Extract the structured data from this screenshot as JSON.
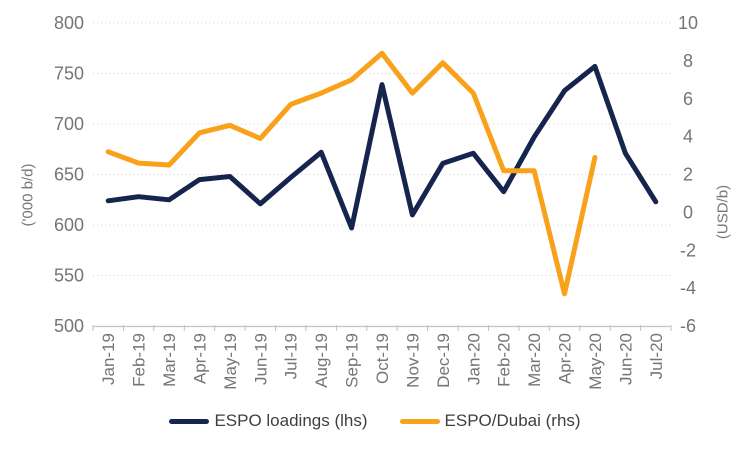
{
  "chart_data": {
    "type": "line",
    "title": "",
    "categories": [
      "Jan-19",
      "Feb-19",
      "Mar-19",
      "Apr-19",
      "May-19",
      "Jun-19",
      "Jul-19",
      "Aug-19",
      "Sep-19",
      "Oct-19",
      "Nov-19",
      "Dec-19",
      "Jan-20",
      "Feb-20",
      "Mar-20",
      "Apr-20",
      "May-20",
      "Jun-20",
      "Jul-20"
    ],
    "series": [
      {
        "name": "ESPO loadings (lhs)",
        "yaxis": "left",
        "color": "#16254e",
        "values": [
          624,
          628,
          625,
          645,
          648,
          621,
          647,
          672,
          597,
          739,
          610,
          661,
          671,
          633,
          687,
          733,
          757,
          671,
          623
        ]
      },
      {
        "name": "ESPO/Dubai (rhs)",
        "yaxis": "right",
        "color": "#f9a11b",
        "values": [
          3.2,
          2.6,
          2.5,
          4.2,
          4.6,
          3.9,
          5.7,
          6.3,
          7.0,
          8.4,
          6.3,
          7.9,
          6.3,
          2.2,
          2.2,
          -4.3,
          2.9,
          null,
          null
        ]
      }
    ],
    "left_axis": {
      "label": "('000 b/d)",
      "min": 500,
      "max": 800,
      "ticks": [
        800,
        750,
        700,
        650,
        600,
        550,
        500
      ]
    },
    "right_axis": {
      "label": "(USD/b)",
      "min": -6,
      "max": 10,
      "ticks": [
        10,
        8,
        6,
        4,
        2,
        0,
        -2,
        -4,
        -6
      ]
    },
    "grid": "horizontal-dotted",
    "legend_position": "bottom"
  },
  "legend": {
    "items": [
      {
        "label": "ESPO loadings (lhs)",
        "color": "#16254e"
      },
      {
        "label": "ESPO/Dubai (rhs)",
        "color": "#f9a11b"
      }
    ]
  },
  "colors": {
    "navy": "#16254e",
    "orange": "#f9a11b",
    "gridline": "#d2d2d2",
    "axis_line": "#c3c3c3",
    "tick_text": "#757575",
    "legend_text": "#3f3f3f"
  }
}
